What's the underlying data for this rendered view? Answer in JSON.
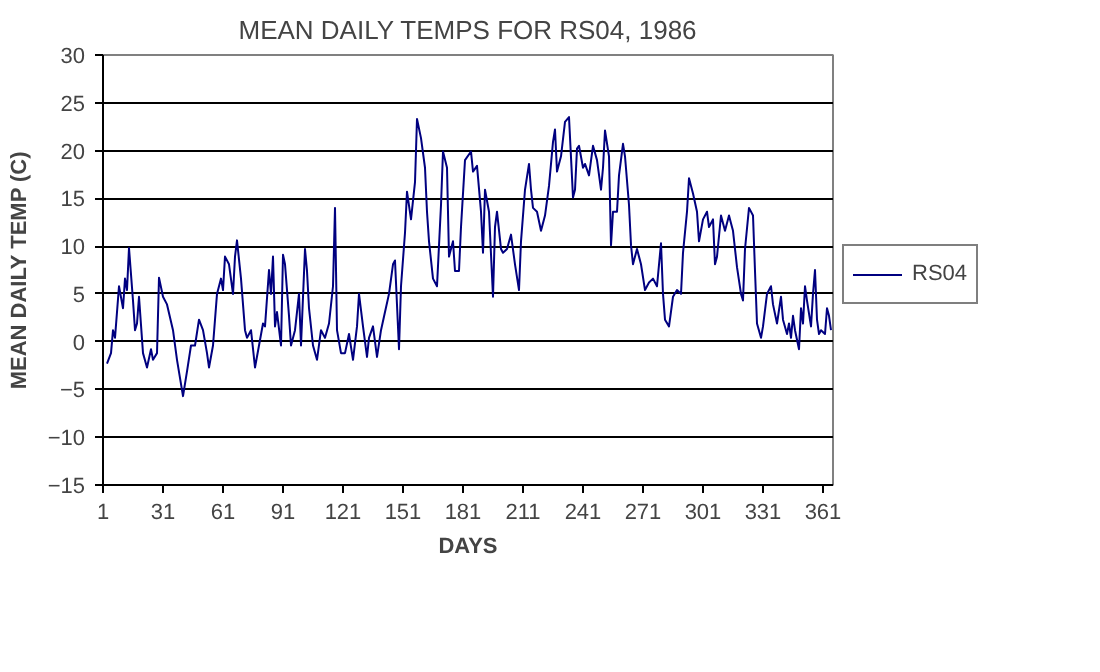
{
  "chart_data": {
    "type": "line",
    "title": "MEAN DAILY TEMPS FOR RS04, 1986",
    "xlabel": "DAYS",
    "ylabel": "MEAN DAILY TEMP (C)",
    "x": [
      3,
      5,
      6,
      7,
      9,
      11,
      12,
      13,
      14,
      16,
      17,
      18,
      19,
      21,
      23,
      25,
      26,
      28,
      29,
      31,
      33,
      36,
      38,
      41,
      43,
      45,
      47,
      49,
      51,
      53,
      54,
      56,
      58,
      60,
      61,
      62,
      64,
      66,
      67,
      68,
      70,
      72,
      73,
      75,
      77,
      79,
      81,
      82,
      84,
      85,
      86,
      87,
      88,
      90,
      91,
      92,
      94,
      95,
      97,
      99,
      100,
      102,
      103,
      104,
      106,
      108,
      110,
      112,
      114,
      116,
      117,
      118,
      120,
      122,
      124,
      126,
      128,
      129,
      131,
      133,
      134,
      136,
      138,
      140,
      142,
      144,
      146,
      147,
      149,
      150,
      152,
      153,
      155,
      157,
      158,
      160,
      162,
      163,
      164,
      166,
      168,
      170,
      171,
      173,
      174,
      176,
      177,
      179,
      180,
      182,
      185,
      186,
      188,
      190,
      191,
      192,
      194,
      196,
      197,
      198,
      200,
      201,
      203,
      205,
      207,
      209,
      210,
      212,
      214,
      215,
      216,
      218,
      220,
      222,
      224,
      226,
      227,
      228,
      230,
      232,
      234,
      236,
      237,
      238,
      239,
      241,
      242,
      244,
      246,
      248,
      250,
      251,
      252,
      254,
      255,
      256,
      258,
      259,
      261,
      262,
      264,
      265,
      266,
      268,
      269,
      270,
      272,
      274,
      276,
      278,
      280,
      281,
      282,
      284,
      286,
      288,
      290,
      291,
      293,
      294,
      296,
      298,
      299,
      301,
      303,
      304,
      306,
      307,
      308,
      310,
      312,
      314,
      315,
      316,
      318,
      320,
      321,
      322,
      324,
      326,
      327,
      328,
      330,
      331,
      333,
      335,
      336,
      338,
      340,
      341,
      343,
      344,
      345,
      346,
      347,
      349,
      350,
      351,
      352,
      353,
      355,
      356,
      357,
      358,
      359,
      360,
      362,
      363,
      364,
      365
    ],
    "series": [
      {
        "name": "RS04",
        "color": "#000080",
        "values": [
          -2.3,
          -1.2,
          1.2,
          0.4,
          5.8,
          3.5,
          6.6,
          5.4,
          9.8,
          4.3,
          1.2,
          1.9,
          4.7,
          -1.2,
          -2.7,
          -0.8,
          -1.9,
          -1.2,
          6.7,
          4.7,
          3.9,
          1.2,
          -1.9,
          -5.7,
          -3.1,
          -0.4,
          -0.4,
          2.3,
          1.2,
          -1.2,
          -2.7,
          -0.4,
          5.0,
          6.6,
          5.4,
          8.9,
          8.1,
          5.0,
          8.9,
          10.6,
          6.6,
          1.2,
          0.4,
          1.2,
          -2.7,
          -0.4,
          1.9,
          1.6,
          7.5,
          5.0,
          8.9,
          1.6,
          3.1,
          -0.4,
          9.1,
          8.1,
          2.7,
          -0.4,
          1.2,
          5.0,
          -0.4,
          9.7,
          7.4,
          3.5,
          -0.4,
          -1.9,
          1.2,
          0.4,
          1.9,
          5.8,
          14.0,
          1.2,
          -1.2,
          -1.2,
          0.8,
          -1.9,
          1.6,
          5.0,
          1.6,
          -1.6,
          0.4,
          1.6,
          -1.6,
          1.2,
          3.1,
          5.0,
          8.1,
          8.5,
          -0.8,
          5.8,
          11.4,
          15.7,
          12.8,
          16.7,
          23.3,
          21.3,
          18.2,
          13.6,
          10.5,
          6.6,
          5.8,
          14.3,
          19.9,
          18.2,
          8.9,
          10.5,
          7.4,
          7.4,
          12.0,
          19.0,
          19.9,
          17.8,
          18.4,
          13.6,
          9.3,
          15.9,
          13.6,
          4.7,
          12.0,
          13.6,
          9.7,
          9.3,
          9.7,
          11.2,
          8.1,
          5.4,
          10.5,
          15.9,
          18.6,
          15.9,
          14.0,
          13.6,
          11.6,
          13.2,
          16.3,
          20.9,
          22.2,
          17.8,
          19.4,
          23.0,
          23.5,
          15.1,
          15.9,
          20.2,
          20.5,
          18.2,
          18.6,
          17.4,
          20.5,
          19.0,
          15.9,
          18.2,
          22.1,
          19.4,
          10.1,
          13.6,
          13.6,
          17.4,
          20.7,
          19.4,
          14.3,
          10.1,
          8.1,
          9.7,
          8.9,
          8.1,
          5.4,
          6.2,
          6.6,
          5.8,
          10.3,
          5.0,
          2.3,
          1.6,
          4.7,
          5.4,
          5.0,
          9.3,
          13.6,
          17.1,
          15.5,
          13.6,
          10.5,
          12.8,
          13.6,
          12.0,
          12.8,
          8.1,
          8.9,
          13.2,
          11.6,
          13.2,
          12.4,
          11.6,
          7.8,
          5.0,
          4.3,
          9.7,
          14.0,
          13.2,
          7.4,
          1.9,
          0.4,
          1.6,
          5.0,
          5.8,
          3.9,
          1.9,
          4.7,
          2.3,
          0.8,
          1.9,
          0.4,
          2.7,
          1.2,
          -0.8,
          3.5,
          1.9,
          5.8,
          4.3,
          1.6,
          5.0,
          7.5,
          2.3,
          0.8,
          1.2,
          0.8,
          3.5,
          2.7,
          1.2
        ]
      }
    ],
    "xlim": [
      1,
      366
    ],
    "xticks": [
      1,
      31,
      61,
      91,
      121,
      151,
      181,
      211,
      241,
      271,
      301,
      331,
      361
    ],
    "ylim": [
      -15,
      30
    ],
    "yticks": [
      -15,
      -10,
      -5,
      0,
      5,
      10,
      15,
      20,
      25,
      30
    ],
    "grid": "y",
    "legend": "right",
    "marker": "none",
    "line_style": "solid"
  }
}
